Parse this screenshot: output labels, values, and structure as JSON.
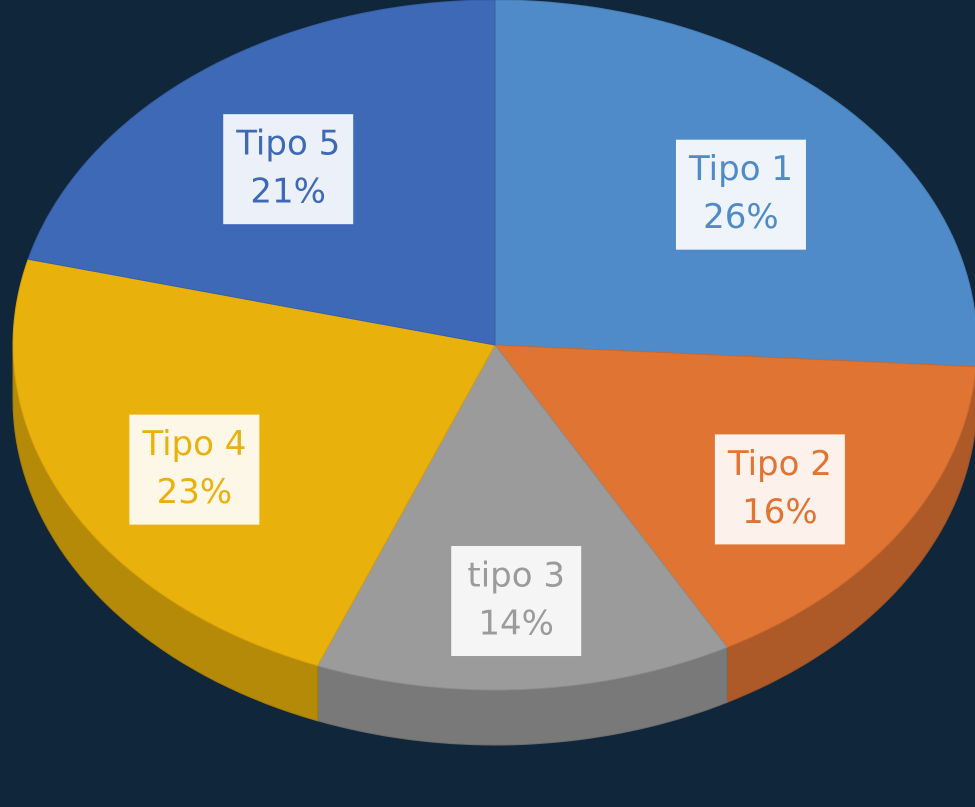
{
  "chart_data": {
    "type": "pie",
    "categories": [
      "Tipo 1",
      "Tipo 2",
      "tipo 3",
      "Tipo 4",
      "Tipo 5"
    ],
    "values": [
      26,
      16,
      14,
      23,
      21
    ],
    "value_labels": [
      "26%",
      "16%",
      "14%",
      "23%",
      "21%"
    ],
    "colors": [
      "#4f8bc9",
      "#df7433",
      "#9b9b9b",
      "#e9b10c",
      "#3e69b6"
    ]
  }
}
